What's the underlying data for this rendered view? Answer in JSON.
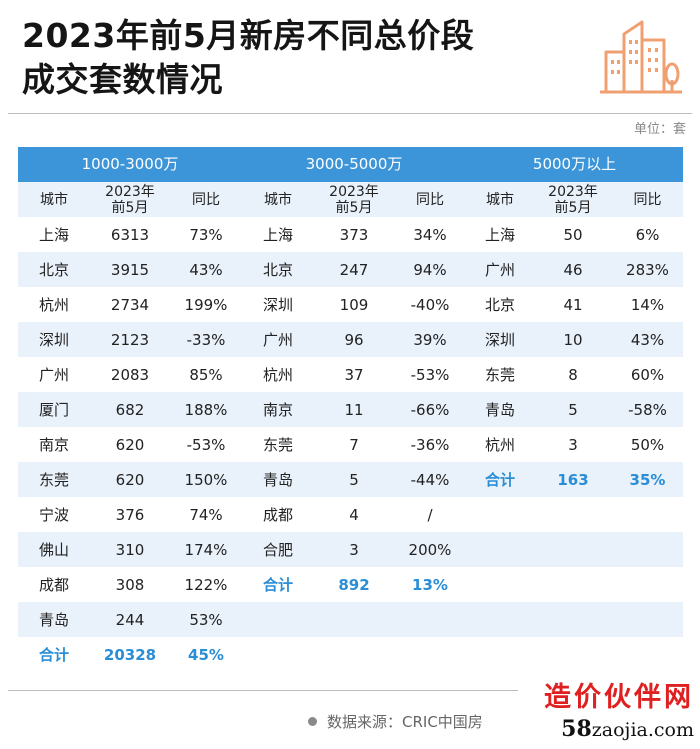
{
  "title_line1": "2023年前5月新房不同总价段",
  "title_line2": "成交套数情况",
  "unit": "单位：套",
  "source": "数据来源：CRIC中国房",
  "watermark": {
    "line1": "造价伙伴网",
    "line2_num": "58",
    "line2_rest": "zaojia.com"
  },
  "colors": {
    "header_bg": "#3c95d9",
    "stripe": "#e9f1fb",
    "total_text": "#2a8ed6",
    "logo": "#f0a070"
  },
  "chart_data": {
    "type": "table",
    "column_headers": [
      "城市",
      "2023年前5月",
      "同比"
    ],
    "column_header_lines": [
      "城市",
      "2023年",
      "前5月",
      "同比"
    ],
    "groups": [
      {
        "name": "1000-3000万",
        "rows": [
          {
            "city": "上海",
            "value": "6313",
            "yoy": "73%"
          },
          {
            "city": "北京",
            "value": "3915",
            "yoy": "43%"
          },
          {
            "city": "杭州",
            "value": "2734",
            "yoy": "199%"
          },
          {
            "city": "深圳",
            "value": "2123",
            "yoy": "-33%"
          },
          {
            "city": "广州",
            "value": "2083",
            "yoy": "85%"
          },
          {
            "city": "厦门",
            "value": "682",
            "yoy": "188%"
          },
          {
            "city": "南京",
            "value": "620",
            "yoy": "-53%"
          },
          {
            "city": "东莞",
            "value": "620",
            "yoy": "150%"
          },
          {
            "city": "宁波",
            "value": "376",
            "yoy": "74%"
          },
          {
            "city": "佛山",
            "value": "310",
            "yoy": "174%"
          },
          {
            "city": "成都",
            "value": "308",
            "yoy": "122%"
          },
          {
            "city": "青岛",
            "value": "244",
            "yoy": "53%"
          }
        ],
        "total": {
          "city": "合计",
          "value": "20328",
          "yoy": "45%"
        }
      },
      {
        "name": "3000-5000万",
        "rows": [
          {
            "city": "上海",
            "value": "373",
            "yoy": "34%"
          },
          {
            "city": "北京",
            "value": "247",
            "yoy": "94%"
          },
          {
            "city": "深圳",
            "value": "109",
            "yoy": "-40%"
          },
          {
            "city": "广州",
            "value": "96",
            "yoy": "39%"
          },
          {
            "city": "杭州",
            "value": "37",
            "yoy": "-53%"
          },
          {
            "city": "南京",
            "value": "11",
            "yoy": "-66%"
          },
          {
            "city": "东莞",
            "value": "7",
            "yoy": "-36%"
          },
          {
            "city": "青岛",
            "value": "5",
            "yoy": "-44%"
          },
          {
            "city": "成都",
            "value": "4",
            "yoy": "/"
          },
          {
            "city": "合肥",
            "value": "3",
            "yoy": "200%"
          }
        ],
        "total": {
          "city": "合计",
          "value": "892",
          "yoy": "13%"
        }
      },
      {
        "name": "5000万以上",
        "rows": [
          {
            "city": "上海",
            "value": "50",
            "yoy": "6%"
          },
          {
            "city": "广州",
            "value": "46",
            "yoy": "283%"
          },
          {
            "city": "北京",
            "value": "41",
            "yoy": "14%"
          },
          {
            "city": "深圳",
            "value": "10",
            "yoy": "43%"
          },
          {
            "city": "东莞",
            "value": "8",
            "yoy": "60%"
          },
          {
            "city": "青岛",
            "value": "5",
            "yoy": "-58%"
          },
          {
            "city": "杭州",
            "value": "3",
            "yoy": "50%"
          }
        ],
        "total": {
          "city": "合计",
          "value": "163",
          "yoy": "35%"
        }
      }
    ]
  }
}
